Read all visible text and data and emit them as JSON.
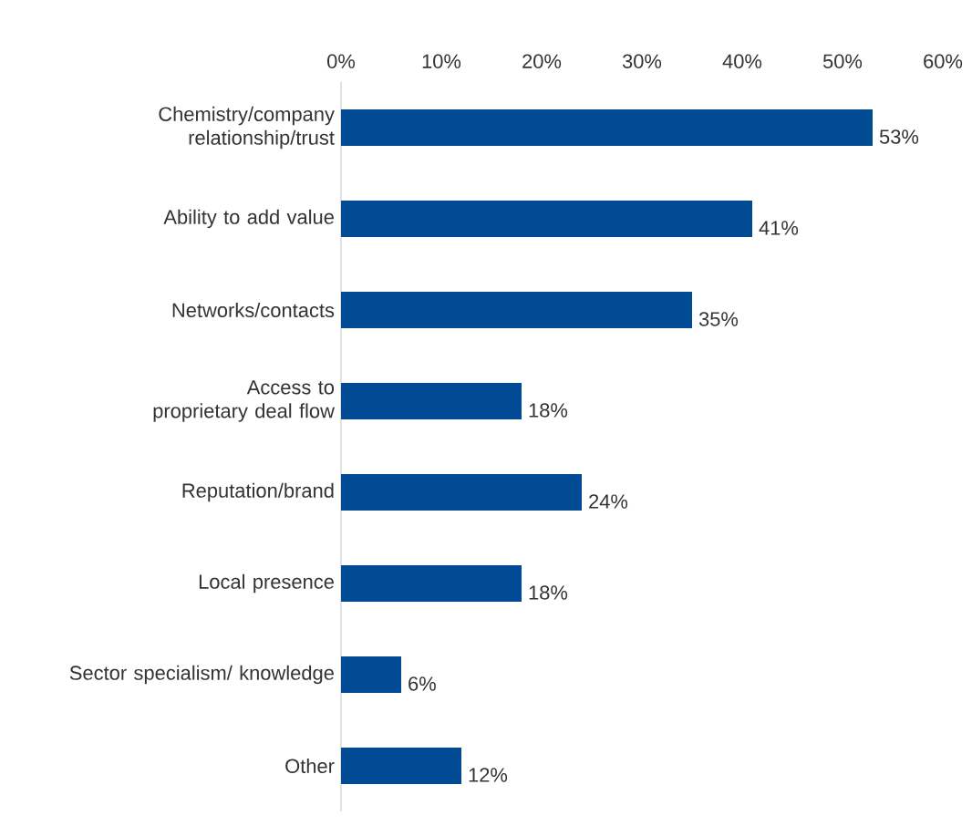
{
  "chart_data": {
    "type": "bar",
    "orientation": "horizontal",
    "categories": [
      "Chemistry/company relationship/trust",
      "Ability to add value",
      "Networks/contacts",
      "Access to proprietary deal flow",
      "Reputation/brand",
      "Local presence",
      "Sector specialism/ knowledge",
      "Other"
    ],
    "values": [
      53,
      41,
      35,
      18,
      24,
      18,
      6,
      12
    ],
    "value_labels": [
      "53%",
      "41%",
      "35%",
      "18%",
      "24%",
      "18%",
      "6%",
      "12%"
    ],
    "color": "#004b93",
    "xlim": [
      0,
      60
    ],
    "xticks": [
      {
        "value": 0,
        "label": "0%"
      },
      {
        "value": 10,
        "label": "10%"
      },
      {
        "value": 20,
        "label": "20%"
      },
      {
        "value": 30,
        "label": "30%"
      },
      {
        "value": 40,
        "label": "40%"
      },
      {
        "value": 50,
        "label": "50%"
      },
      {
        "value": 60,
        "label": "60%"
      }
    ],
    "tick_labels": "xy"
  }
}
